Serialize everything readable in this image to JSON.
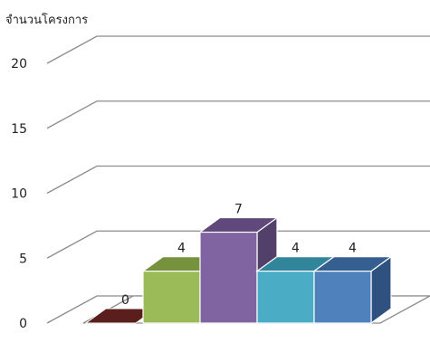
{
  "chart_data": {
    "type": "bar",
    "ylabel": "จำนวนโครงการ",
    "xlabel": "",
    "title": "",
    "ylim": [
      0,
      20
    ],
    "ticks": [
      "0",
      "5",
      "10",
      "15",
      "20"
    ],
    "tick_values": [
      0,
      5,
      10,
      15,
      20
    ],
    "categories": [
      "",
      "",
      "",
      "",
      ""
    ],
    "values": [
      0,
      4,
      7,
      4,
      4
    ],
    "data_labels": [
      "0",
      "4",
      "7",
      "4",
      "4"
    ],
    "colors": [
      "#7b2a26",
      "#9bbb59",
      "#8064a2",
      "#4bacc6",
      "#4f81bd"
    ],
    "top_colors": [
      "#5a1f1c",
      "#76923c",
      "#60497a",
      "#31859b",
      "#365f91"
    ],
    "side_colors": [
      "#4a1816",
      "#6a8334",
      "#52406b",
      "#2c7688",
      "#2e5180"
    ],
    "grid": true,
    "legend": "none",
    "three_d": true
  }
}
